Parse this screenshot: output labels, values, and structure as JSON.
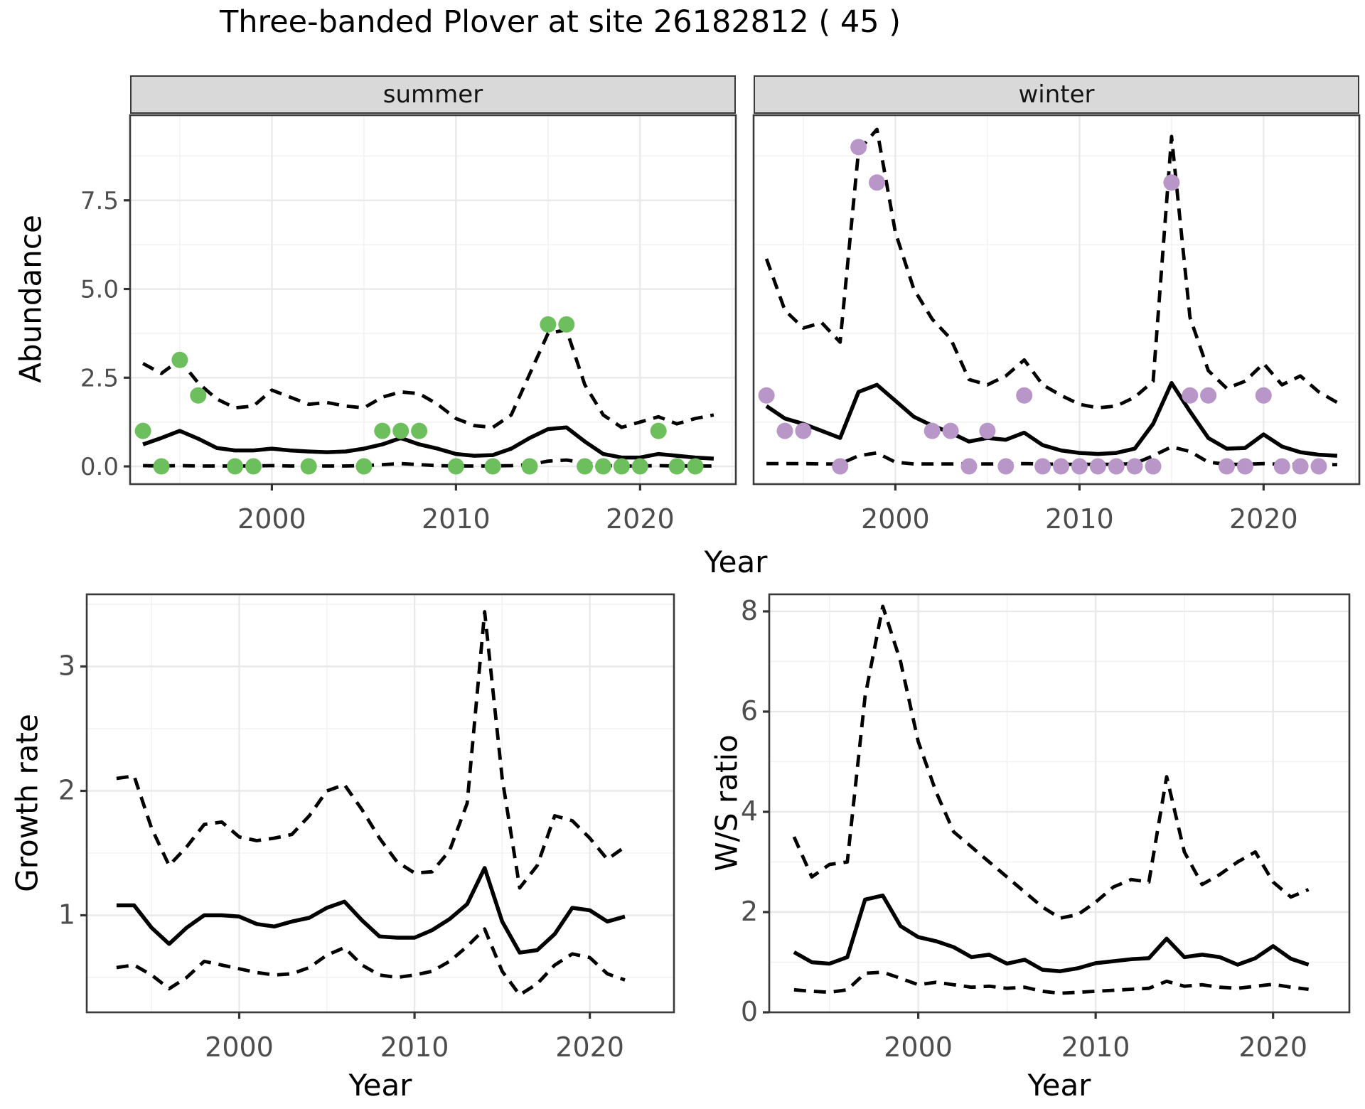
{
  "title": "Three-banded Plover at site 26182812 ( 45 )",
  "colors": {
    "summer_point": "#6dbe5c",
    "winter_point": "#b896c8",
    "line": "#000000",
    "grid_major": "#e9e9e9",
    "grid_minor": "#f2f2f2",
    "strip_bg": "#d9d9d9",
    "panel_border": "#3a3a3a",
    "axis_text": "#4d4d4d",
    "tick_mark": "#333333"
  },
  "chart_data": [
    {
      "id": "abundance_summer",
      "type": "line+scatter",
      "facet_label": "summer",
      "xlabel": "Year",
      "ylabel": "Abundance",
      "xlim": [
        1992.3,
        2025.2
      ],
      "ylim": [
        -0.5,
        9.9
      ],
      "xticks": [
        2000,
        2010,
        2020
      ],
      "xminor": [
        1995,
        2005,
        2015,
        2025
      ],
      "yticks": [
        0.0,
        2.5,
        5.0,
        7.5
      ],
      "ytick_labels": [
        "0.0",
        "2.5",
        "5.0",
        "7.5"
      ],
      "yminor": [
        1.25,
        3.75,
        6.25,
        8.75
      ],
      "x": [
        1993,
        1994,
        1995,
        1996,
        1997,
        1998,
        1999,
        2000,
        2001,
        2002,
        2003,
        2004,
        2005,
        2006,
        2007,
        2008,
        2009,
        2010,
        2011,
        2012,
        2013,
        2014,
        2015,
        2016,
        2017,
        2018,
        2019,
        2020,
        2021,
        2022,
        2023,
        2024
      ],
      "series": [
        {
          "name": "median",
          "style": "solid",
          "values": [
            0.62,
            0.8,
            1.0,
            0.78,
            0.52,
            0.45,
            0.45,
            0.5,
            0.45,
            0.42,
            0.4,
            0.42,
            0.5,
            0.62,
            0.8,
            0.62,
            0.5,
            0.35,
            0.3,
            0.32,
            0.5,
            0.8,
            1.05,
            1.1,
            0.7,
            0.35,
            0.25,
            0.25,
            0.35,
            0.3,
            0.25,
            0.22
          ]
        },
        {
          "name": "upper_95ci",
          "style": "dashed",
          "values": [
            2.9,
            2.62,
            3.0,
            2.35,
            1.9,
            1.65,
            1.7,
            2.15,
            1.95,
            1.75,
            1.8,
            1.7,
            1.65,
            1.95,
            2.1,
            2.05,
            1.75,
            1.35,
            1.15,
            1.1,
            1.45,
            2.6,
            3.75,
            3.85,
            2.3,
            1.45,
            1.1,
            1.25,
            1.4,
            1.2,
            1.35,
            1.45
          ]
        },
        {
          "name": "lower_95ci",
          "style": "dashed",
          "values": [
            0.02,
            0.01,
            0.02,
            0.01,
            0.01,
            0.01,
            0.01,
            0.02,
            0.01,
            0.01,
            0.01,
            0.01,
            0.02,
            0.05,
            0.08,
            0.05,
            0.02,
            0.01,
            0.01,
            0.01,
            0.02,
            0.05,
            0.15,
            0.18,
            0.1,
            0.02,
            0.01,
            0.01,
            0.02,
            0.01,
            0.01,
            0.01
          ]
        }
      ],
      "points": {
        "color_key": "summer_point",
        "xy": [
          [
            1993,
            1
          ],
          [
            1994,
            0
          ],
          [
            1995,
            3
          ],
          [
            1996,
            2
          ],
          [
            1998,
            0
          ],
          [
            1999,
            0
          ],
          [
            2002,
            0
          ],
          [
            2005,
            0
          ],
          [
            2006,
            1
          ],
          [
            2007,
            1
          ],
          [
            2008,
            1
          ],
          [
            2010,
            0
          ],
          [
            2012,
            0
          ],
          [
            2014,
            0
          ],
          [
            2015,
            4
          ],
          [
            2016,
            4
          ],
          [
            2017,
            0
          ],
          [
            2018,
            0
          ],
          [
            2019,
            0
          ],
          [
            2020,
            0
          ],
          [
            2021,
            1
          ],
          [
            2022,
            0
          ],
          [
            2023,
            0
          ]
        ]
      }
    },
    {
      "id": "abundance_winter",
      "type": "line+scatter",
      "facet_label": "winter",
      "xlabel": "Year",
      "ylabel": "Abundance",
      "xlim": [
        1992.3,
        2025.2
      ],
      "ylim": [
        -0.5,
        9.9
      ],
      "xticks": [
        2000,
        2010,
        2020
      ],
      "xminor": [
        1995,
        2005,
        2015,
        2025
      ],
      "yticks": [],
      "ytick_labels": [],
      "yminor": [
        1.25,
        3.75,
        6.25,
        8.75
      ],
      "x": [
        1993,
        1994,
        1995,
        1996,
        1997,
        1998,
        1999,
        2000,
        2001,
        2002,
        2003,
        2004,
        2005,
        2006,
        2007,
        2008,
        2009,
        2010,
        2011,
        2012,
        2013,
        2014,
        2015,
        2016,
        2017,
        2018,
        2019,
        2020,
        2021,
        2022,
        2023,
        2024
      ],
      "series": [
        {
          "name": "median",
          "style": "solid",
          "values": [
            1.7,
            1.35,
            1.2,
            1.0,
            0.8,
            2.1,
            2.3,
            1.85,
            1.4,
            1.15,
            0.95,
            0.7,
            0.8,
            0.75,
            0.95,
            0.6,
            0.45,
            0.38,
            0.35,
            0.38,
            0.5,
            1.2,
            2.35,
            1.55,
            0.8,
            0.5,
            0.52,
            0.9,
            0.56,
            0.4,
            0.33,
            0.3
          ]
        },
        {
          "name": "upper_95ci",
          "style": "dashed",
          "values": [
            5.85,
            4.4,
            3.9,
            4.05,
            3.5,
            8.9,
            9.5,
            6.6,
            5.0,
            4.15,
            3.6,
            2.45,
            2.3,
            2.55,
            3.0,
            2.3,
            2.0,
            1.75,
            1.65,
            1.7,
            1.95,
            2.4,
            9.3,
            4.2,
            2.7,
            2.2,
            2.4,
            2.9,
            2.3,
            2.55,
            2.1,
            1.8
          ]
        },
        {
          "name": "lower_95ci",
          "style": "dashed",
          "values": [
            0.08,
            0.08,
            0.08,
            0.07,
            0.07,
            0.3,
            0.38,
            0.12,
            0.07,
            0.07,
            0.07,
            0.07,
            0.07,
            0.07,
            0.08,
            0.07,
            0.06,
            0.06,
            0.06,
            0.06,
            0.08,
            0.3,
            0.55,
            0.42,
            0.12,
            0.06,
            0.06,
            0.08,
            0.06,
            0.05,
            0.05,
            0.05
          ]
        }
      ],
      "points": {
        "color_key": "winter_point",
        "xy": [
          [
            1993,
            2
          ],
          [
            1994,
            1
          ],
          [
            1995,
            1
          ],
          [
            1997,
            0
          ],
          [
            1998,
            9
          ],
          [
            1999,
            8
          ],
          [
            2002,
            1
          ],
          [
            2003,
            1
          ],
          [
            2004,
            0
          ],
          [
            2005,
            1
          ],
          [
            2006,
            0
          ],
          [
            2007,
            2
          ],
          [
            2008,
            0
          ],
          [
            2009,
            0
          ],
          [
            2010,
            0
          ],
          [
            2011,
            0
          ],
          [
            2012,
            0
          ],
          [
            2013,
            0
          ],
          [
            2014,
            0
          ],
          [
            2015,
            8
          ],
          [
            2016,
            2
          ],
          [
            2017,
            2
          ],
          [
            2018,
            0
          ],
          [
            2019,
            0
          ],
          [
            2020,
            2
          ],
          [
            2021,
            0
          ],
          [
            2022,
            0
          ],
          [
            2023,
            0
          ]
        ]
      }
    },
    {
      "id": "growth_rate",
      "type": "line",
      "facet_label": "",
      "xlabel": "Year",
      "ylabel": "Growth rate",
      "xlim": [
        1991.3,
        2024.8
      ],
      "ylim": [
        0.22,
        3.58
      ],
      "xticks": [
        2000,
        2010,
        2020
      ],
      "xminor": [
        1995,
        2005,
        2015
      ],
      "yticks": [
        1,
        2,
        3
      ],
      "ytick_labels": [
        "1",
        "2",
        "3"
      ],
      "yminor": [
        0.5,
        1.5,
        2.5,
        3.5
      ],
      "x": [
        1993,
        1994,
        1995,
        1996,
        1997,
        1998,
        1999,
        2000,
        2001,
        2002,
        2003,
        2004,
        2005,
        2006,
        2007,
        2008,
        2009,
        2010,
        2011,
        2012,
        2013,
        2014,
        2015,
        2016,
        2017,
        2018,
        2019,
        2020,
        2021,
        2022
      ],
      "series": [
        {
          "name": "median",
          "style": "solid",
          "values": [
            1.08,
            1.08,
            0.9,
            0.77,
            0.9,
            1.0,
            1.0,
            0.99,
            0.93,
            0.91,
            0.95,
            0.98,
            1.06,
            1.11,
            0.96,
            0.83,
            0.82,
            0.82,
            0.88,
            0.97,
            1.09,
            1.38,
            0.95,
            0.7,
            0.72,
            0.85,
            1.06,
            1.04,
            0.95,
            0.99
          ]
        },
        {
          "name": "upper_95ci",
          "style": "dashed",
          "values": [
            2.1,
            2.12,
            1.7,
            1.4,
            1.55,
            1.73,
            1.75,
            1.63,
            1.6,
            1.62,
            1.65,
            1.8,
            2.0,
            2.05,
            1.85,
            1.62,
            1.43,
            1.34,
            1.35,
            1.52,
            1.9,
            3.44,
            2.1,
            1.22,
            1.4,
            1.8,
            1.76,
            1.62,
            1.45,
            1.55
          ]
        },
        {
          "name": "lower_95ci",
          "style": "dashed",
          "values": [
            0.58,
            0.6,
            0.52,
            0.41,
            0.5,
            0.63,
            0.6,
            0.57,
            0.54,
            0.52,
            0.53,
            0.58,
            0.68,
            0.74,
            0.6,
            0.52,
            0.5,
            0.52,
            0.55,
            0.63,
            0.75,
            0.89,
            0.55,
            0.36,
            0.45,
            0.6,
            0.69,
            0.66,
            0.53,
            0.48
          ]
        }
      ],
      "points": null
    },
    {
      "id": "ws_ratio",
      "type": "line",
      "facet_label": "",
      "xlabel": "Year",
      "ylabel": "W/S ratio",
      "xlim": [
        1991.6,
        2024.3
      ],
      "ylim": [
        0,
        8.34
      ],
      "xticks": [
        2000,
        2010,
        2020
      ],
      "xminor": [
        1995,
        2005,
        2015
      ],
      "yticks": [
        0,
        2,
        4,
        6,
        8
      ],
      "ytick_labels": [
        "0",
        "2",
        "4",
        "6",
        "8"
      ],
      "yminor": [
        1,
        3,
        5,
        7
      ],
      "x": [
        1993,
        1994,
        1995,
        1996,
        1997,
        1998,
        1999,
        2000,
        2001,
        2002,
        2003,
        2004,
        2005,
        2006,
        2007,
        2008,
        2009,
        2010,
        2011,
        2012,
        2013,
        2014,
        2015,
        2016,
        2017,
        2018,
        2019,
        2020,
        2021,
        2022
      ],
      "series": [
        {
          "name": "median",
          "style": "solid",
          "values": [
            1.2,
            1.0,
            0.97,
            1.1,
            2.25,
            2.33,
            1.72,
            1.5,
            1.42,
            1.3,
            1.1,
            1.15,
            0.97,
            1.05,
            0.85,
            0.82,
            0.88,
            0.98,
            1.02,
            1.06,
            1.08,
            1.47,
            1.1,
            1.15,
            1.1,
            0.95,
            1.08,
            1.32,
            1.07,
            0.95
          ]
        },
        {
          "name": "upper_95ci",
          "style": "dashed",
          "values": [
            3.5,
            2.7,
            2.95,
            3.0,
            6.3,
            8.1,
            7.0,
            5.4,
            4.4,
            3.6,
            3.3,
            3.0,
            2.7,
            2.4,
            2.1,
            1.88,
            1.95,
            2.2,
            2.5,
            2.65,
            2.6,
            4.7,
            3.2,
            2.55,
            2.75,
            3.0,
            3.2,
            2.6,
            2.3,
            2.45
          ]
        },
        {
          "name": "lower_95ci",
          "style": "dashed",
          "values": [
            0.45,
            0.42,
            0.4,
            0.45,
            0.78,
            0.8,
            0.68,
            0.55,
            0.6,
            0.55,
            0.5,
            0.52,
            0.48,
            0.5,
            0.42,
            0.38,
            0.4,
            0.42,
            0.44,
            0.46,
            0.48,
            0.62,
            0.52,
            0.55,
            0.5,
            0.48,
            0.52,
            0.56,
            0.5,
            0.46
          ]
        }
      ],
      "points": null
    }
  ]
}
